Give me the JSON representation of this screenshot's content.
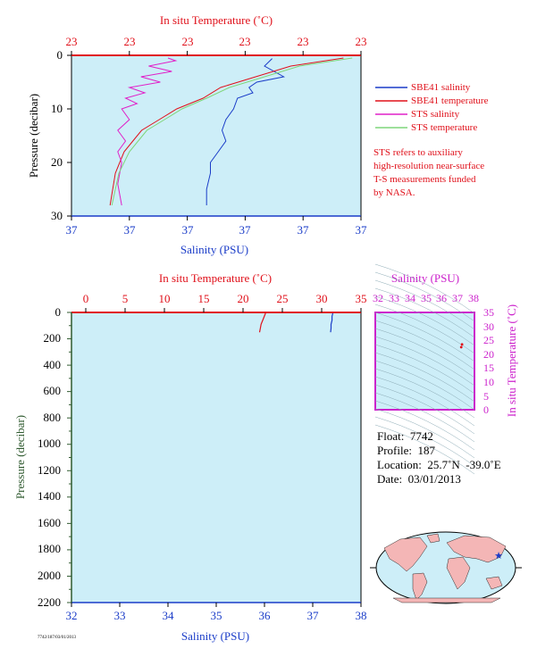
{
  "colors": {
    "panel_bg": "#cdeef8",
    "sbe41_salinity": "#1a3cc8",
    "sbe41_temperature": "#e0101a",
    "sts_salinity": "#e020c8",
    "sts_temperature": "#7fd67a",
    "pressure_axis": "#2f5a2f",
    "ts_axis": "#cc22cc",
    "land": "#f4b6b6",
    "ocean_map": "#cdeef8"
  },
  "top_panel": {
    "top_axis_title": "In situ Temperature (˚C)",
    "top_ticks": [
      "23",
      "23",
      "23",
      "23",
      "23",
      "23"
    ],
    "bottom_axis_title": "Salinity (PSU)",
    "bottom_ticks": [
      "37",
      "37",
      "37",
      "37",
      "37",
      "37"
    ],
    "y_axis_title": "Pressure (decibar)",
    "y_ticks": [
      "0",
      "10",
      "20",
      "30"
    ]
  },
  "legend": {
    "items": [
      {
        "label": "SBE41 salinity",
        "color_key": "sbe41_salinity"
      },
      {
        "label": "SBE41 temperature",
        "color_key": "sbe41_temperature"
      },
      {
        "label": "STS salinity",
        "color_key": "sts_salinity"
      },
      {
        "label": "STS temperature",
        "color_key": "sts_temperature"
      }
    ],
    "note_lines": [
      "STS refers to auxiliary",
      "high-resolution near-surface",
      "T-S measurements funded",
      "by NASA."
    ]
  },
  "bottom_panel": {
    "top_axis_title": "In situ Temperature (˚C)",
    "top_ticks": [
      "0",
      "5",
      "10",
      "15",
      "20",
      "25",
      "30",
      "35"
    ],
    "bottom_axis_title": "Salinity (PSU)",
    "bottom_ticks": [
      "32",
      "33",
      "34",
      "35",
      "36",
      "37",
      "38"
    ],
    "y_axis_title": "Pressure (decibar)",
    "y_ticks": [
      "0",
      "200",
      "400",
      "600",
      "800",
      "1000",
      "1200",
      "1400",
      "1600",
      "1800",
      "2000",
      "2200"
    ]
  },
  "ts_panel": {
    "top_axis_title": "Salinity (PSU)",
    "top_ticks": [
      "32",
      "33",
      "34",
      "35",
      "36",
      "37",
      "38"
    ],
    "right_axis_title": "In situ Temperature (˚C)",
    "right_ticks": [
      "35",
      "30",
      "25",
      "20",
      "15",
      "10",
      "5",
      "0"
    ]
  },
  "info": {
    "float": "Float:  7742",
    "profile": "Profile:  187",
    "location": "Location:  25.7˚N  -39.0˚E",
    "date": "Date:  03/01/2013"
  },
  "footer_code": "7742/187/03/01/2013",
  "chart_data": [
    {
      "type": "line",
      "name": "near-surface profile",
      "y_reversed": true,
      "ylim": [
        0,
        30
      ],
      "series": [
        {
          "name": "SBE41 salinity",
          "color_key": "sbe41_salinity",
          "x": [
            37.22,
            37.2,
            37.25,
            37.18,
            37.16,
            37.17,
            37.13,
            37.12,
            37.1,
            37.09,
            37.1,
            37.08,
            37.06,
            37.06,
            37.05,
            37.05
          ],
          "y": [
            0.6,
            2,
            4,
            5,
            6,
            7,
            8,
            10,
            12,
            14,
            16,
            18,
            20,
            22,
            25,
            28
          ]
        },
        {
          "name": "SBE41 temperature",
          "color_key": "sbe41_temperature",
          "x": [
            23.9,
            23.6,
            23.4,
            23.2,
            23.1,
            22.95,
            22.85,
            22.75,
            22.7,
            22.65,
            22.6,
            22.57
          ],
          "y": [
            0.5,
            2,
            4,
            6,
            8,
            10,
            12,
            14,
            16,
            18,
            22,
            28
          ]
        },
        {
          "name": "STS salinity",
          "color_key": "sts_salinity",
          "x": [
            36.95,
            36.97,
            36.9,
            36.96,
            36.88,
            36.93,
            36.85,
            36.89,
            36.84,
            36.87,
            36.83,
            36.85,
            36.82,
            36.84,
            36.82,
            36.83,
            36.82,
            36.83
          ],
          "y": [
            0.5,
            1,
            2,
            3,
            4,
            5,
            6,
            7,
            8,
            9,
            10,
            12,
            14,
            16,
            18,
            20,
            24,
            28
          ]
        },
        {
          "name": "STS temperature",
          "color_key": "sts_temperature",
          "x": [
            23.95,
            23.65,
            23.45,
            23.25,
            23.12,
            22.98,
            22.88,
            22.78,
            22.73,
            22.68,
            22.62,
            22.58
          ],
          "y": [
            0.5,
            2,
            4,
            6,
            8,
            10,
            12,
            14,
            16,
            18,
            22,
            28
          ]
        }
      ]
    },
    {
      "type": "line",
      "name": "full-depth profile",
      "y_reversed": true,
      "xlim_salinity": [
        32,
        38
      ],
      "xlim_temperature": [
        0,
        35
      ],
      "ylim": [
        0,
        2200
      ],
      "series": [
        {
          "name": "SBE41 temperature",
          "color_key": "sbe41_temperature",
          "x": [
            22.9,
            22.7,
            22.5,
            22.3,
            22.2,
            22.1
          ],
          "y": [
            0,
            30,
            60,
            90,
            120,
            150
          ]
        },
        {
          "name": "SBE41 salinity",
          "color_key": "sbe41_salinity",
          "x": [
            37.42,
            37.4,
            37.4,
            37.38,
            37.38,
            37.37
          ],
          "y": [
            0,
            30,
            60,
            90,
            120,
            150
          ]
        }
      ]
    },
    {
      "type": "scatter",
      "name": "T-S diagram",
      "xlim": [
        32,
        38
      ],
      "ylim": [
        0,
        35
      ],
      "series": [
        {
          "name": "profile",
          "color_key": "sbe41_temperature",
          "x": [
            37.2,
            37.25
          ],
          "y": [
            22.5,
            23.5
          ]
        }
      ]
    },
    {
      "type": "map",
      "name": "float location",
      "marker": {
        "lat": 25.7,
        "lon": -39.0
      }
    }
  ]
}
